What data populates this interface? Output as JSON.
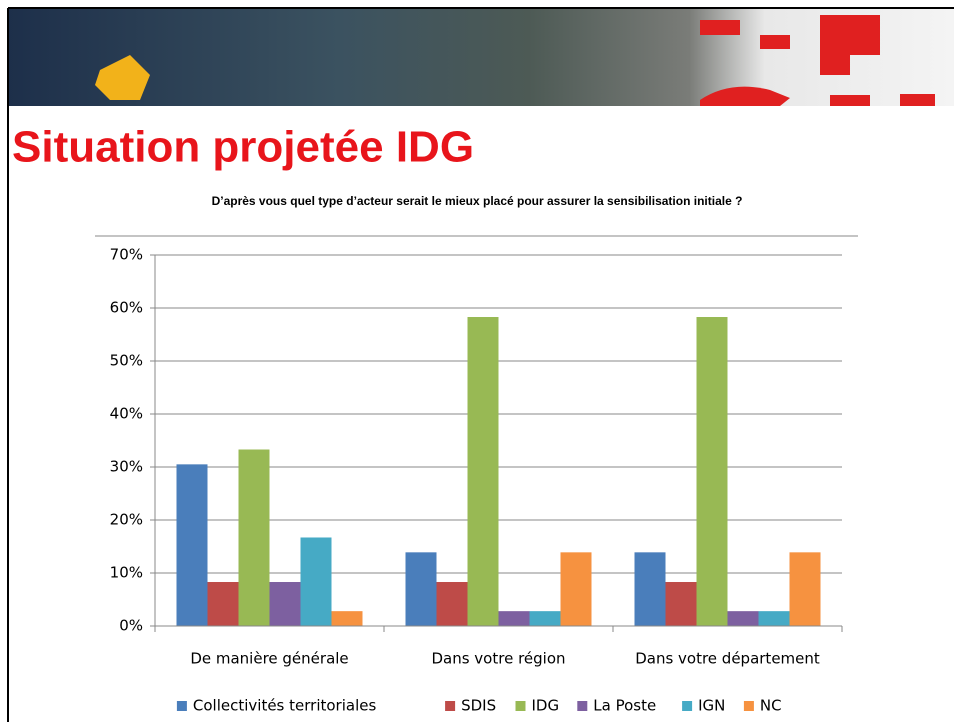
{
  "header": {
    "title": "Situation projetée IDG"
  },
  "chart_data": {
    "type": "bar",
    "title": "D’après vous quel type d’acteur serait le mieux placé pour assurer la sensibilisation initiale ?",
    "categories": [
      "De manière générale",
      "Dans votre région",
      "Dans votre département"
    ],
    "series": [
      {
        "name": "Collectivités territoriales",
        "color": "#4a7ebb",
        "values": [
          30.5,
          13.9,
          13.9
        ]
      },
      {
        "name": "SDIS",
        "color": "#be4b48",
        "values": [
          8.3,
          8.3,
          8.3
        ]
      },
      {
        "name": "IDG",
        "color": "#98b954",
        "values": [
          33.3,
          58.3,
          58.3
        ]
      },
      {
        "name": "La Poste",
        "color": "#7d60a0",
        "values": [
          8.3,
          2.8,
          2.8
        ]
      },
      {
        "name": "IGN",
        "color": "#46aac5",
        "values": [
          16.7,
          2.8,
          2.8
        ]
      },
      {
        "name": "NC",
        "color": "#f69240",
        "values": [
          2.8,
          13.9,
          13.9
        ]
      }
    ],
    "ylim": [
      0,
      70
    ],
    "yticks": [
      {
        "value": 0,
        "label": "0%"
      },
      {
        "value": 10,
        "label": "10%"
      },
      {
        "value": 20,
        "label": "20%"
      },
      {
        "value": 30,
        "label": "30%"
      },
      {
        "value": 40,
        "label": "40%"
      },
      {
        "value": 50,
        "label": "50%"
      },
      {
        "value": 60,
        "label": "60%"
      },
      {
        "value": 70,
        "label": "70%"
      }
    ],
    "grid": true,
    "legend": "bottom"
  }
}
